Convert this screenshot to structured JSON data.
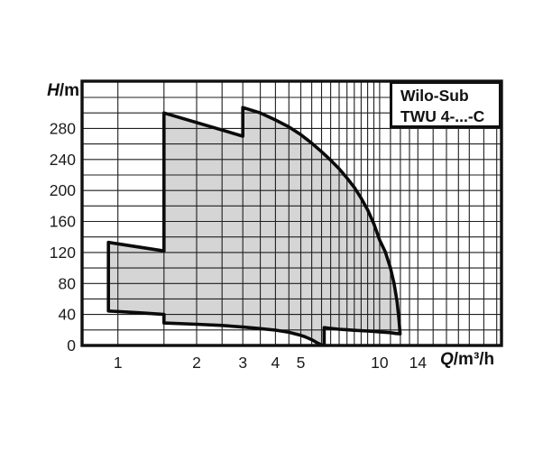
{
  "chart_data": {
    "type": "area",
    "description": "Pump performance operating range envelope",
    "legend": [
      "Wilo-Sub",
      "TWU 4-...-C"
    ],
    "x_axis": {
      "label_italic": "Q",
      "label_rest": "/m³/h",
      "scale": "log",
      "min": 0.73,
      "max": 29.2,
      "tick_values": [
        1,
        2,
        3,
        4,
        5,
        10,
        14
      ],
      "tick_labels": [
        "1",
        "2",
        "3",
        "4",
        "5",
        "10",
        "14"
      ],
      "gridlines": [
        1,
        1.5,
        2,
        2.5,
        3,
        3.5,
        4,
        4.5,
        5,
        5.5,
        6,
        6.5,
        7,
        7.5,
        8,
        8.5,
        9,
        9.5,
        10,
        11,
        12,
        13,
        14,
        16,
        18,
        20,
        22,
        25,
        28
      ]
    },
    "y_axis": {
      "label_italic": "H",
      "label_rest": "/m",
      "scale": "linear",
      "min": 0,
      "max": 341,
      "gridline_step": 20,
      "tick_values": [
        0,
        40,
        80,
        120,
        160,
        200,
        240,
        280
      ],
      "tick_labels": [
        "0",
        "40",
        "80",
        "120",
        "160",
        "200",
        "240",
        "280"
      ]
    },
    "envelope_points": [
      [
        0.92,
        44.5
      ],
      [
        0.92,
        133
      ],
      [
        1.5,
        122
      ],
      [
        1.5,
        300
      ],
      [
        3.0,
        270
      ],
      [
        3.0,
        307
      ],
      [
        3.5,
        300
      ],
      [
        4.0,
        291
      ],
      [
        4.5,
        282
      ],
      [
        5.0,
        272
      ],
      [
        5.5,
        261
      ],
      [
        6.0,
        250
      ],
      [
        6.5,
        239
      ],
      [
        7.0,
        228
      ],
      [
        7.5,
        216
      ],
      [
        8.0,
        204
      ],
      [
        8.5,
        190
      ],
      [
        9.0,
        175
      ],
      [
        9.5,
        157
      ],
      [
        10.0,
        136
      ],
      [
        10.5,
        121
      ],
      [
        11.0,
        100
      ],
      [
        11.35,
        80
      ],
      [
        11.65,
        57
      ],
      [
        11.85,
        34
      ],
      [
        11.97,
        15
      ],
      [
        11.5,
        15.5
      ],
      [
        11.0,
        16.5
      ],
      [
        10.0,
        17.6
      ],
      [
        9.0,
        18.6
      ],
      [
        8.0,
        19.6
      ],
      [
        7.0,
        21
      ],
      [
        6.5,
        22
      ],
      [
        6.14,
        23
      ],
      [
        6.14,
        0.5
      ],
      [
        6.0,
        0.5
      ],
      [
        5.8,
        3
      ],
      [
        5.5,
        7.5
      ],
      [
        5.2,
        11
      ],
      [
        5.0,
        13
      ],
      [
        4.5,
        17
      ],
      [
        4.0,
        19.8
      ],
      [
        3.5,
        21.8
      ],
      [
        3.0,
        23.8
      ],
      [
        2.5,
        25.8
      ],
      [
        2.0,
        27.4
      ],
      [
        1.5,
        29
      ],
      [
        1.5,
        40
      ],
      [
        1.2,
        42.3
      ],
      [
        0.92,
        44.5
      ]
    ],
    "colors": {
      "background": "#ffffff",
      "area_fill": "#d5d5d5",
      "area_outline": "#0b0b0b",
      "grid": "#1f1f1f",
      "border": "#101010",
      "text": "#1b1b1b"
    }
  }
}
